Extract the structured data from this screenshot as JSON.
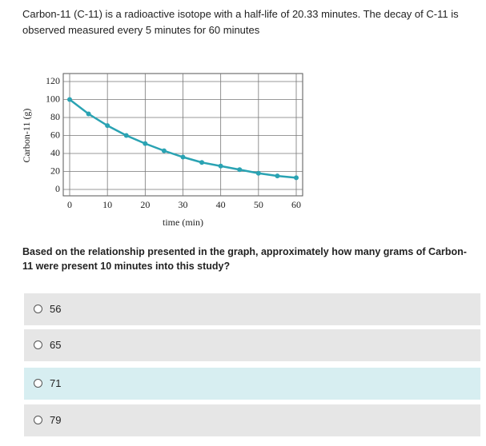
{
  "intro": "Carbon-11 (C-11) is a radioactive isotope with a half-life of 20.33 minutes. The decay of C-11 is observed measured every 5 minutes for 60 minutes",
  "chart_data": {
    "type": "line",
    "y_label": "Carbon-11 (g)",
    "x_label": "time (min)",
    "x": [
      0,
      5,
      10,
      15,
      20,
      25,
      30,
      35,
      40,
      45,
      50,
      55,
      60
    ],
    "series": [
      {
        "name": "Carbon-11",
        "color": "#2aa3b3",
        "values": [
          100,
          84,
          71,
          60,
          51,
          43,
          36,
          30,
          26,
          22,
          18,
          15,
          13
        ]
      }
    ],
    "xlim": [
      0,
      60
    ],
    "ylim": [
      0,
      120
    ],
    "xticks": [
      0,
      10,
      20,
      30,
      40,
      50,
      60
    ],
    "yticks": [
      0,
      20,
      40,
      60,
      80,
      100,
      120
    ],
    "grid": true
  },
  "question": "Based on the relationship presented in the graph, approximately how many grams of Carbon-11 were present 10 minutes into this study?",
  "options": [
    "56",
    "65",
    "71",
    "79"
  ]
}
